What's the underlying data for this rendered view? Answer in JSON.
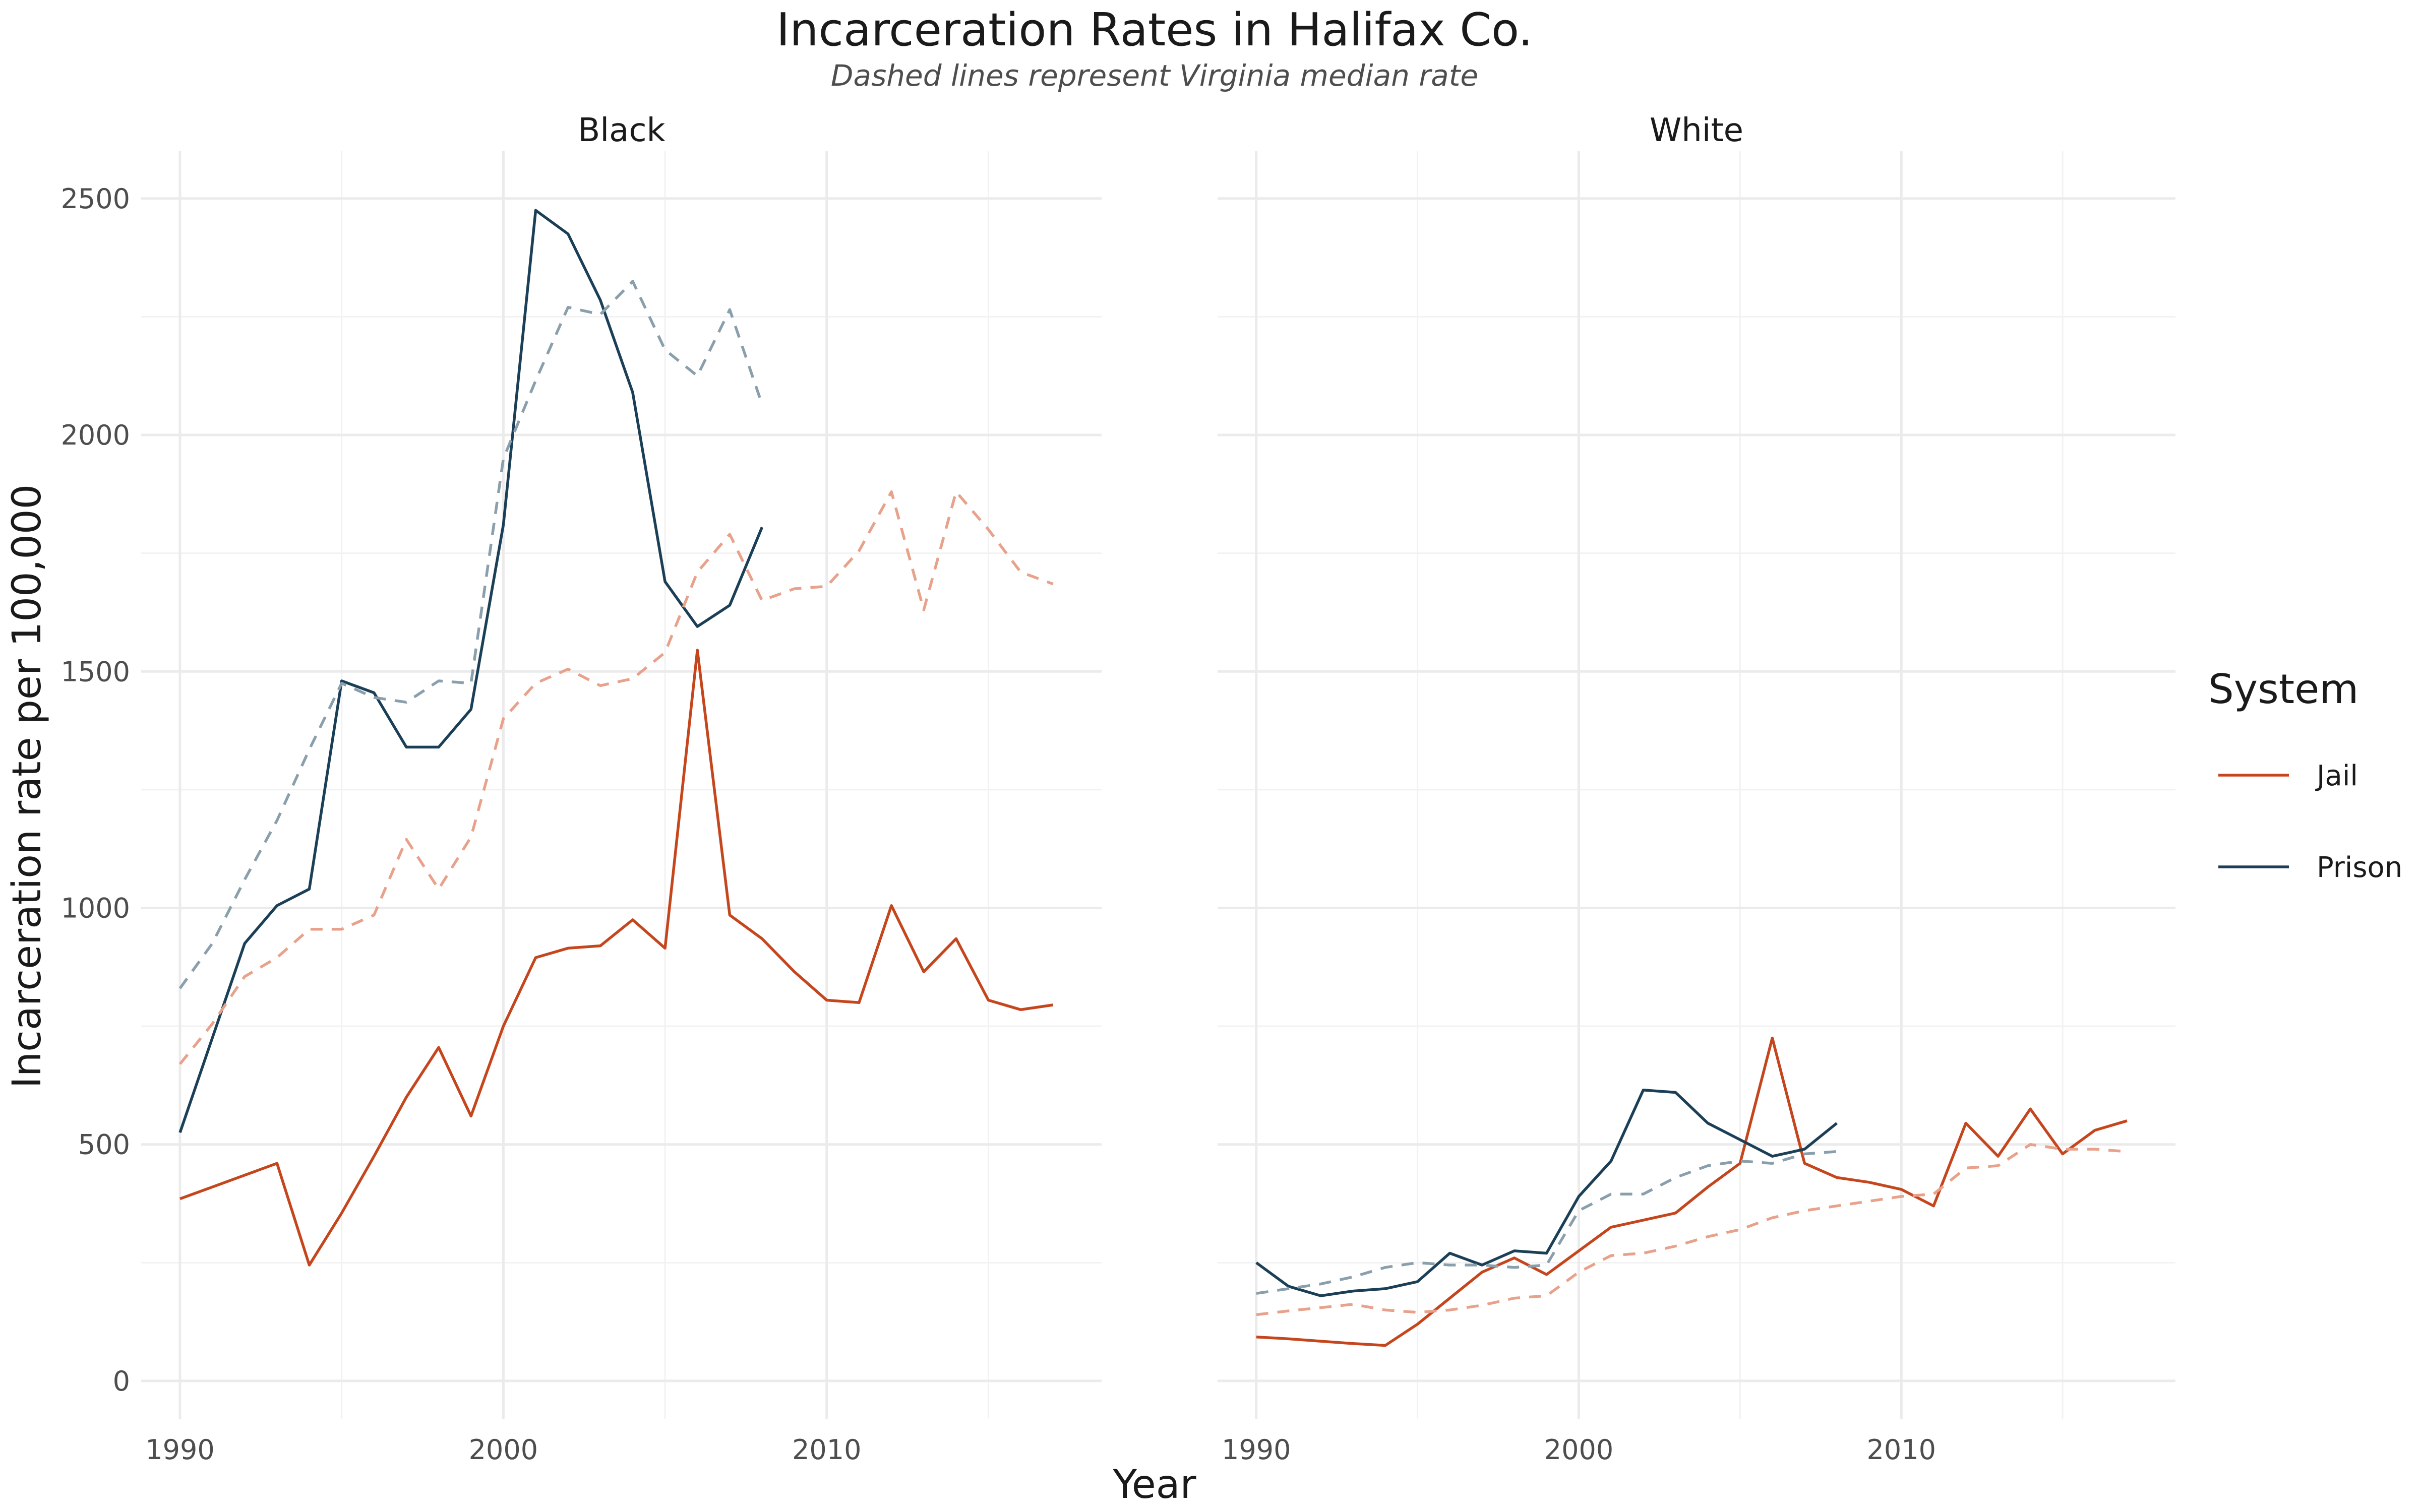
{
  "chart_data": {
    "type": "line",
    "title": "Incarceration Rates in Halifax Co.",
    "subtitle": "Dashed lines represent Virginia median rate",
    "xlabel": "Year",
    "ylabel": "Incarceration rate per 100,000",
    "xlim": [
      1988.8,
      2018.5
    ],
    "ylim": [
      -80,
      2600
    ],
    "x_ticks": [
      1990,
      2000,
      2010
    ],
    "y_ticks": [
      0,
      500,
      1000,
      1500,
      2000,
      2500
    ],
    "grid": true,
    "legend": {
      "title": "System",
      "position": "right",
      "entries": [
        {
          "label": "Jail",
          "color": "#C5451C"
        },
        {
          "label": "Prison",
          "color": "#1B3F56"
        }
      ]
    },
    "panels": [
      {
        "label": "Black",
        "series": [
          {
            "system": "Jail",
            "line": "solid",
            "color": "#C5451C",
            "x": [
              1990,
              1991,
              1992,
              1993,
              1994,
              1995,
              1996,
              1997,
              1998,
              1999,
              2000,
              2001,
              2002,
              2003,
              2004,
              2005,
              2006,
              2007,
              2008,
              2009,
              2010,
              2011,
              2012,
              2013,
              2014,
              2015,
              2016,
              2017
            ],
            "y": [
              385,
              410,
              435,
              460,
              245,
              355,
              475,
              600,
              705,
              560,
              750,
              895,
              915,
              920,
              975,
              915,
              1545,
              985,
              935,
              865,
              805,
              800,
              1005,
              865,
              935,
              805,
              785,
              795
            ]
          },
          {
            "system": "Prison",
            "line": "solid",
            "color": "#1B3F56",
            "x": [
              1990,
              1991,
              1992,
              1993,
              1994,
              1995,
              1996,
              1997,
              1998,
              1999,
              2000,
              2001,
              2002,
              2003,
              2004,
              2005,
              2006,
              2007,
              2008
            ],
            "y": [
              525,
              725,
              925,
              1005,
              1040,
              1480,
              1455,
              1340,
              1340,
              1420,
              1810,
              2475,
              2425,
              2285,
              2090,
              1690,
              1595,
              1640,
              1805
            ]
          },
          {
            "system": "Jail",
            "line": "dashed",
            "color": "#E8A18A",
            "x": [
              1990,
              1991,
              1992,
              1993,
              1994,
              1995,
              1996,
              1997,
              1998,
              1999,
              2000,
              2001,
              2002,
              2003,
              2004,
              2005,
              2006,
              2007,
              2008,
              2009,
              2010,
              2011,
              2012,
              2013,
              2014,
              2015,
              2016,
              2017
            ],
            "y": [
              670,
              755,
              855,
              895,
              955,
              955,
              985,
              1145,
              1040,
              1150,
              1400,
              1475,
              1505,
              1470,
              1485,
              1540,
              1710,
              1790,
              1650,
              1675,
              1680,
              1755,
              1880,
              1630,
              1880,
              1800,
              1710,
              1685
            ]
          },
          {
            "system": "Prison",
            "line": "dashed",
            "color": "#8A9FAC",
            "x": [
              1990,
              1991,
              1992,
              1993,
              1994,
              1995,
              1996,
              1997,
              1998,
              1999,
              2000,
              2001,
              2002,
              2003,
              2004,
              2005,
              2006,
              2007,
              2008
            ],
            "y": [
              830,
              925,
              1060,
              1185,
              1335,
              1475,
              1445,
              1435,
              1480,
              1475,
              1950,
              2115,
              2270,
              2255,
              2325,
              2180,
              2125,
              2265,
              2065
            ]
          }
        ]
      },
      {
        "label": "White",
        "series": [
          {
            "system": "Jail",
            "line": "solid",
            "color": "#C5451C",
            "x": [
              1990,
              1991,
              1992,
              1993,
              1994,
              1995,
              1996,
              1997,
              1998,
              1999,
              2000,
              2001,
              2002,
              2003,
              2004,
              2005,
              2006,
              2007,
              2008,
              2009,
              2010,
              2011,
              2012,
              2013,
              2014,
              2015,
              2016,
              2017
            ],
            "y": [
              93,
              89,
              84,
              79,
              75,
              120,
              175,
              230,
              260,
              225,
              275,
              325,
              340,
              355,
              410,
              460,
              725,
              460,
              430,
              420,
              405,
              370,
              545,
              475,
              575,
              480,
              530,
              550
            ]
          },
          {
            "system": "Prison",
            "line": "solid",
            "color": "#1B3F56",
            "x": [
              1990,
              1991,
              1992,
              1993,
              1994,
              1995,
              1996,
              1997,
              1998,
              1999,
              2000,
              2001,
              2002,
              2003,
              2004,
              2005,
              2006,
              2007,
              2008
            ],
            "y": [
              250,
              200,
              180,
              190,
              195,
              210,
              270,
              245,
              275,
              270,
              390,
              465,
              615,
              610,
              545,
              510,
              475,
              490,
              545
            ]
          },
          {
            "system": "Jail",
            "line": "dashed",
            "color": "#E8A18A",
            "x": [
              1990,
              1991,
              1992,
              1993,
              1994,
              1995,
              1996,
              1997,
              1998,
              1999,
              2000,
              2001,
              2002,
              2003,
              2004,
              2005,
              2006,
              2007,
              2008,
              2009,
              2010,
              2011,
              2012,
              2013,
              2014,
              2015,
              2016,
              2017
            ],
            "y": [
              140,
              148,
              155,
              162,
              150,
              145,
              150,
              160,
              175,
              180,
              230,
              265,
              270,
              285,
              305,
              320,
              345,
              360,
              370,
              380,
              390,
              395,
              450,
              455,
              500,
              490,
              490,
              485
            ]
          },
          {
            "system": "Prison",
            "line": "dashed",
            "color": "#8A9FAC",
            "x": [
              1990,
              1991,
              1992,
              1993,
              1994,
              1995,
              1996,
              1997,
              1998,
              1999,
              2000,
              2001,
              2002,
              2003,
              2004,
              2005,
              2006,
              2007,
              2008
            ],
            "y": [
              185,
              195,
              205,
              220,
              240,
              250,
              245,
              245,
              240,
              245,
              360,
              395,
              395,
              430,
              455,
              465,
              460,
              480,
              485
            ]
          }
        ]
      }
    ]
  }
}
